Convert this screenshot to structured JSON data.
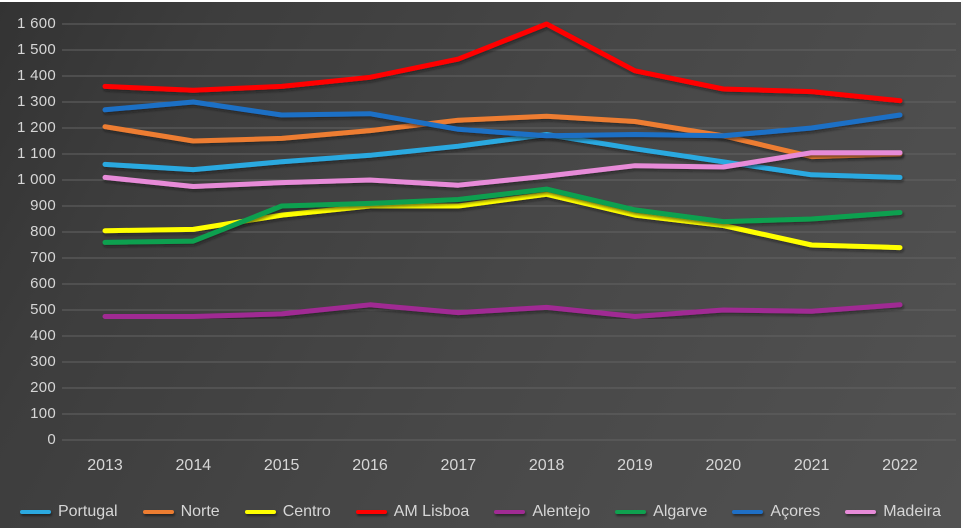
{
  "chart_data": {
    "type": "line",
    "title": "",
    "xlabel": "",
    "ylabel": "",
    "categories": [
      "2013",
      "2014",
      "2015",
      "2016",
      "2017",
      "2018",
      "2019",
      "2020",
      "2021",
      "2022"
    ],
    "series": [
      {
        "name": "Portugal",
        "color": "#2BA9E0",
        "values": [
          1060,
          1040,
          1070,
          1095,
          1130,
          1175,
          1120,
          1070,
          1020,
          1010
        ]
      },
      {
        "name": "Norte",
        "color": "#ED7D31",
        "values": [
          1205,
          1150,
          1160,
          1190,
          1230,
          1245,
          1225,
          1170,
          1090,
          1100
        ]
      },
      {
        "name": "Centro",
        "color": "#FFFF00",
        "values": [
          805,
          810,
          865,
          900,
          900,
          945,
          865,
          825,
          750,
          740
        ]
      },
      {
        "name": "AM Lisboa",
        "color": "#FF0000",
        "values": [
          1360,
          1345,
          1360,
          1395,
          1465,
          1600,
          1420,
          1350,
          1340,
          1305
        ]
      },
      {
        "name": "Alentejo",
        "color": "#A02B93",
        "values": [
          475,
          475,
          485,
          520,
          490,
          510,
          475,
          500,
          495,
          520
        ]
      },
      {
        "name": "Algarve",
        "color": "#0FA04F",
        "values": [
          760,
          765,
          900,
          910,
          925,
          965,
          885,
          840,
          850,
          875
        ]
      },
      {
        "name": "Açores",
        "color": "#1F6FC5",
        "values": [
          1270,
          1300,
          1250,
          1255,
          1195,
          1170,
          1175,
          1170,
          1200,
          1250
        ]
      },
      {
        "name": "Madeira",
        "color": "#E78BD8",
        "values": [
          1010,
          975,
          990,
          1000,
          980,
          1015,
          1055,
          1050,
          1105,
          1105
        ]
      }
    ],
    "ylim": [
      0,
      1600
    ],
    "ytick_step": 100,
    "ytick_labels": [
      "1 600",
      "1 500",
      "1 400",
      "1 300",
      "1 200",
      "1 100",
      "1 000",
      "900",
      "800",
      "700",
      "600",
      "500",
      "400",
      "300",
      "200",
      "100",
      "0"
    ],
    "grid": true,
    "legend_position": "bottom"
  },
  "style": {
    "gridline_color": "#636363",
    "text_color": "#d6d6d6",
    "line_width": 5
  }
}
